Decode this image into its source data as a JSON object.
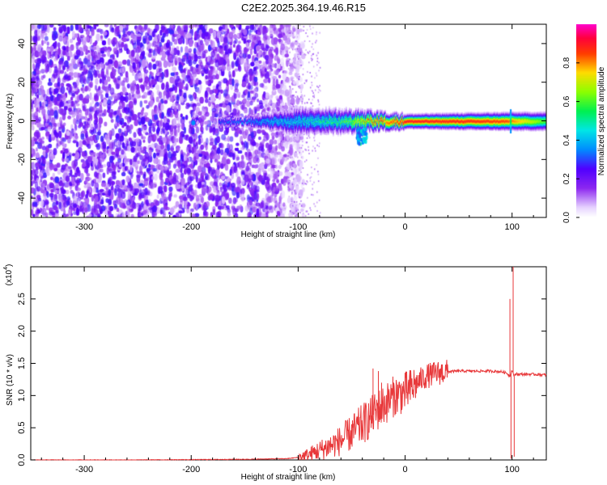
{
  "title": "C2E2.2025.364.19.46.R15",
  "colorbar": {
    "label": "Normalized spectral amplitude",
    "ticks": [
      0.0,
      0.2,
      0.4,
      0.6,
      0.8
    ],
    "tick_labels": [
      "0.0",
      "0.2",
      "0.4",
      "0.6",
      "0.8"
    ],
    "range": [
      0,
      1
    ]
  },
  "chart_data": [
    {
      "type": "heatmap",
      "title": "",
      "xlabel": "Height of straight line (km)",
      "ylabel": "Frequency (Hz)",
      "xlim": [
        -350,
        132
      ],
      "ylim": [
        -50,
        50
      ],
      "x_ticks": [
        -300,
        -200,
        -100,
        0,
        100
      ],
      "x_tick_labels": [
        "-300",
        "-200",
        "-100",
        "0",
        "100"
      ],
      "y_ticks": [
        -40,
        -20,
        0,
        20,
        40
      ],
      "y_tick_labels": [
        "-40",
        "-20",
        "0",
        "20",
        "40"
      ],
      "colormap": "rainbow (white at 0, violet-blue-cyan-green-yellow-red-magenta)",
      "features": {
        "noise_region_x": [
          -350,
          -95
        ],
        "noise_amplitude": 0.2,
        "signal_frequency_hz": 0,
        "signal_start_x": -200,
        "signal_bandwidth_hz": [
          {
            "x": -150,
            "halfwidth": 2
          },
          {
            "x": -100,
            "halfwidth": 6
          },
          {
            "x": -50,
            "halfwidth": 5
          },
          {
            "x": 0,
            "halfwidth": 3
          },
          {
            "x": 130,
            "halfwidth": 4
          }
        ],
        "signal_amplitude": [
          {
            "x": -200,
            "value": 0.25
          },
          {
            "x": -150,
            "value": 0.35
          },
          {
            "x": -100,
            "value": 0.4
          },
          {
            "x": -60,
            "value": 0.5
          },
          {
            "x": -30,
            "value": 0.75
          },
          {
            "x": -10,
            "value": 0.85
          },
          {
            "x": 0,
            "value": 0.9
          },
          {
            "x": 60,
            "value": 0.88
          },
          {
            "x": 95,
            "value": 0.85
          },
          {
            "x": 130,
            "value": 0.6
          }
        ]
      },
      "grid": false
    },
    {
      "type": "line",
      "title": "",
      "xlabel": "Height of straight line (km)",
      "ylabel": "SNR (10 * v/v)",
      "y_scale_label": "(x10",
      "y_scale_exponent": "4",
      "xlim": [
        -350,
        132
      ],
      "ylim": [
        0,
        3.0
      ],
      "x_ticks": [
        -300,
        -200,
        -100,
        0,
        100
      ],
      "x_tick_labels": [
        "-300",
        "-200",
        "-100",
        "0",
        "100"
      ],
      "y_ticks": [
        0.0,
        0.5,
        1.0,
        1.5,
        2.0,
        2.5
      ],
      "y_tick_labels": [
        "0.0",
        "0.5",
        "1.0",
        "1.5",
        "2.0",
        "2.5"
      ],
      "series": [
        {
          "color": "#e8383a",
          "x": [
            -350,
            -250,
            -150,
            -110,
            -100,
            -90,
            -80,
            -70,
            -60,
            -50,
            -40,
            -35,
            -30,
            -25,
            -20,
            -15,
            -10,
            -5,
            0,
            5,
            10,
            15,
            20,
            30,
            40,
            50,
            60,
            70,
            80,
            90,
            95,
            98,
            100,
            102,
            104,
            106,
            110,
            120,
            132
          ],
          "values": [
            0.0,
            0.0,
            0.01,
            0.02,
            0.04,
            0.08,
            0.15,
            0.22,
            0.3,
            0.42,
            0.55,
            0.62,
            0.7,
            0.78,
            0.85,
            0.92,
            1.0,
            1.02,
            1.05,
            1.1,
            1.18,
            1.25,
            1.3,
            1.35,
            1.37,
            1.38,
            1.38,
            1.38,
            1.38,
            1.37,
            1.35,
            1.3,
            1.4,
            1.3,
            1.34,
            1.33,
            1.33,
            1.33,
            1.32
          ]
        }
      ],
      "spikes": [
        {
          "x": -30,
          "value": 1.42
        },
        {
          "x": -25,
          "value": 1.38
        },
        {
          "x": -22,
          "value": 1.2
        },
        {
          "x": -15,
          "value": 1.1
        },
        {
          "x": 98,
          "value": 2.5
        },
        {
          "x": 101,
          "value": 3.0
        },
        {
          "x": 99,
          "value": 0.02
        },
        {
          "x": 102,
          "value": 0.05
        }
      ],
      "grid": false
    }
  ]
}
